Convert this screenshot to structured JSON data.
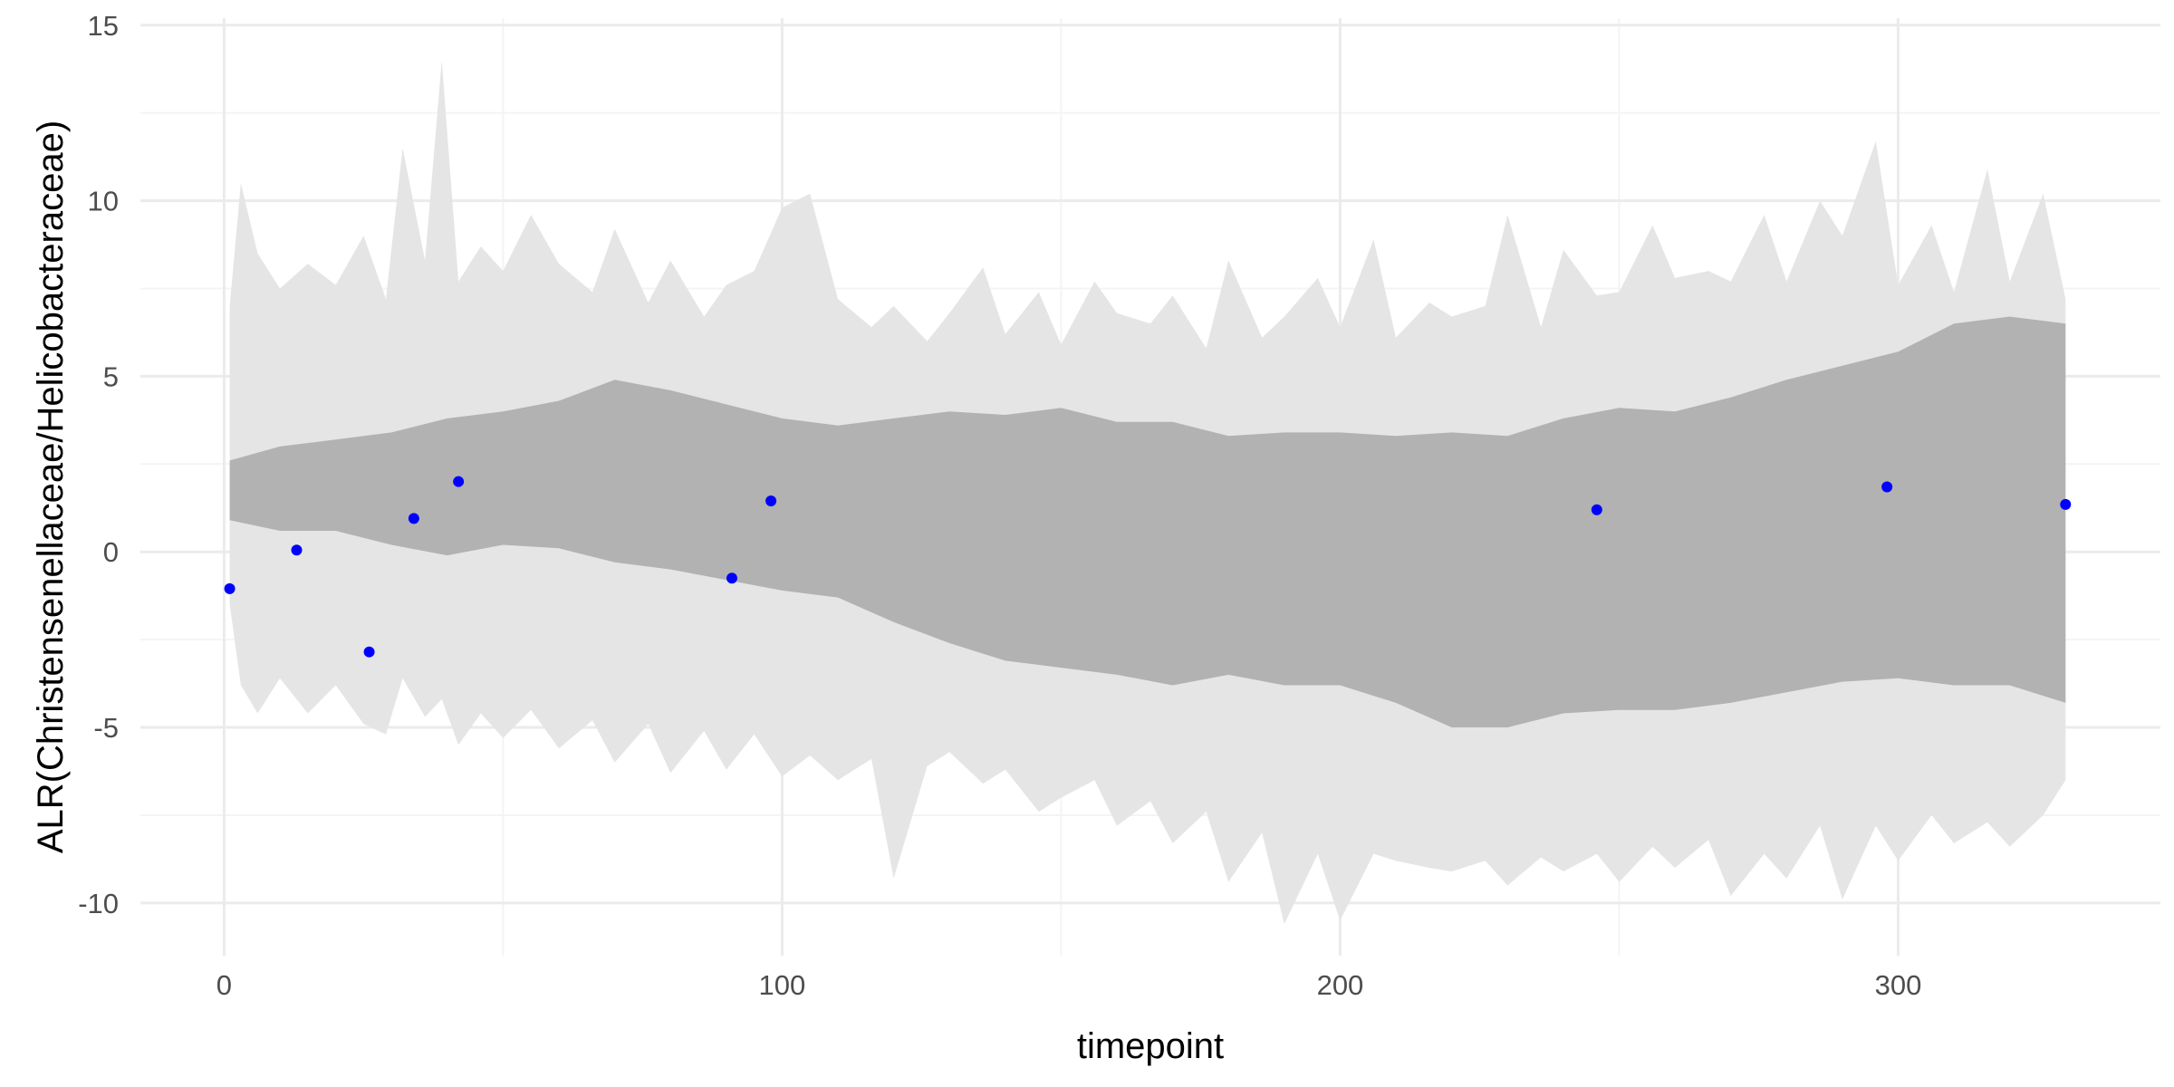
{
  "chart_data": {
    "type": "area",
    "title": "",
    "xlabel": "timepoint",
    "ylabel": "ALR(Christensenellaceae/Helicobacteraceae)",
    "xlim": [
      -15,
      347
    ],
    "ylim": [
      -11.5,
      15.2
    ],
    "x_ticks": [
      0,
      100,
      200,
      300
    ],
    "x_tick_labels": [
      "0",
      "100",
      "200",
      "300"
    ],
    "y_ticks": [
      -10,
      -5,
      0,
      5,
      10,
      15
    ],
    "y_tick_labels": [
      "-10",
      "-5",
      "0",
      "5",
      "10",
      "15"
    ],
    "grid": true,
    "legend": "none",
    "colors": {
      "outer_band": "#e5e5e5",
      "inner_band": "#b2b2b2",
      "points": "#0000ff",
      "grid_major": "#ebebeb",
      "grid_minor": "#f4f4f4"
    },
    "inner_band": {
      "x": [
        1,
        10,
        20,
        30,
        40,
        50,
        60,
        70,
        80,
        90,
        100,
        110,
        120,
        130,
        140,
        150,
        160,
        170,
        180,
        190,
        200,
        210,
        220,
        230,
        240,
        250,
        260,
        270,
        280,
        290,
        300,
        310,
        320,
        330
      ],
      "upper": [
        2.6,
        3.0,
        3.2,
        3.4,
        3.8,
        4.0,
        4.3,
        4.9,
        4.6,
        4.2,
        3.8,
        3.6,
        3.8,
        4.0,
        3.9,
        4.1,
        3.7,
        3.7,
        3.3,
        3.4,
        3.4,
        3.3,
        3.4,
        3.3,
        3.8,
        4.1,
        4.0,
        4.4,
        4.9,
        5.3,
        5.7,
        6.5,
        6.7,
        6.5
      ],
      "lower": [
        0.9,
        0.6,
        0.6,
        0.2,
        -0.1,
        0.2,
        0.1,
        -0.3,
        -0.5,
        -0.8,
        -1.1,
        -1.3,
        -2.0,
        -2.6,
        -3.1,
        -3.3,
        -3.5,
        -3.8,
        -3.5,
        -3.8,
        -3.8,
        -4.3,
        -5.0,
        -5.0,
        -4.6,
        -4.5,
        -4.5,
        -4.3,
        -4.0,
        -3.7,
        -3.6,
        -3.8,
        -3.8,
        -4.3
      ]
    },
    "outer_band": {
      "x": [
        1,
        3,
        6,
        10,
        15,
        20,
        25,
        29,
        32,
        36,
        39,
        42,
        46,
        50,
        55,
        60,
        66,
        70,
        76,
        80,
        86,
        90,
        95,
        100,
        105,
        110,
        116,
        120,
        126,
        130,
        136,
        140,
        146,
        150,
        156,
        160,
        166,
        170,
        176,
        180,
        186,
        190,
        196,
        200,
        206,
        210,
        216,
        220,
        226,
        230,
        236,
        240,
        246,
        250,
        256,
        260,
        266,
        270,
        276,
        280,
        286,
        290,
        296,
        300,
        306,
        310,
        316,
        320,
        326,
        330
      ],
      "upper": [
        7.0,
        10.5,
        8.5,
        7.5,
        8.2,
        7.6,
        9.0,
        7.2,
        11.5,
        8.3,
        14.0,
        7.7,
        8.7,
        8.0,
        9.6,
        8.2,
        7.4,
        9.2,
        7.1,
        8.3,
        6.7,
        7.6,
        8.0,
        9.8,
        10.2,
        7.2,
        6.4,
        7.0,
        6.0,
        6.8,
        8.1,
        6.2,
        7.4,
        5.9,
        7.7,
        6.8,
        6.5,
        7.3,
        5.8,
        8.3,
        6.1,
        6.7,
        7.8,
        6.4,
        8.9,
        6.1,
        7.1,
        6.7,
        7.0,
        9.6,
        6.4,
        8.6,
        7.3,
        7.4,
        9.3,
        7.8,
        8.0,
        7.7,
        9.6,
        7.7,
        10.0,
        9.0,
        11.7,
        7.6,
        9.3,
        7.4,
        10.9,
        7.7,
        10.2,
        7.2
      ],
      "lower": [
        -1.5,
        -3.8,
        -4.6,
        -3.6,
        -4.6,
        -3.8,
        -4.9,
        -5.2,
        -3.6,
        -4.7,
        -4.2,
        -5.5,
        -4.6,
        -5.3,
        -4.5,
        -5.6,
        -4.8,
        -6.0,
        -4.9,
        -6.3,
        -5.1,
        -6.2,
        -5.2,
        -6.4,
        -5.8,
        -6.5,
        -5.9,
        -9.3,
        -6.1,
        -5.7,
        -6.6,
        -6.2,
        -7.4,
        -7.0,
        -6.5,
        -7.8,
        -7.1,
        -8.3,
        -7.4,
        -9.4,
        -8.0,
        -10.6,
        -8.6,
        -10.5,
        -8.6,
        -8.8,
        -9.0,
        -9.1,
        -8.8,
        -9.5,
        -8.7,
        -9.1,
        -8.6,
        -9.4,
        -8.4,
        -9.0,
        -8.2,
        -9.8,
        -8.6,
        -9.3,
        -7.8,
        -9.9,
        -7.8,
        -8.8,
        -7.5,
        -8.3,
        -7.7,
        -8.4,
        -7.5,
        -6.5
      ]
    },
    "points": {
      "x": [
        1,
        13,
        26,
        34,
        42,
        91,
        98,
        246,
        298,
        330
      ],
      "y": [
        -1.05,
        0.05,
        -2.85,
        0.95,
        2.0,
        -0.75,
        1.45,
        1.2,
        1.85,
        1.35
      ]
    }
  }
}
